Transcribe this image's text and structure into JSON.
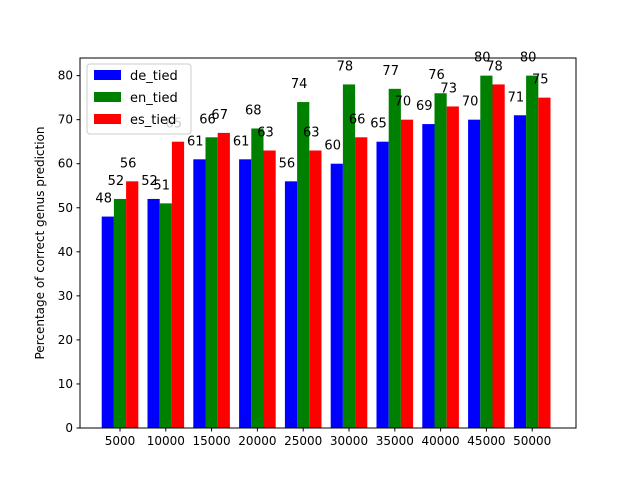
{
  "chart_data": {
    "type": "bar",
    "title": "",
    "xlabel": "",
    "ylabel": "Percentage of correct genus prediction",
    "categories": [
      "5000",
      "10000",
      "15000",
      "20000",
      "25000",
      "30000",
      "35000",
      "40000",
      "45000",
      "50000"
    ],
    "ylim": [
      0,
      84
    ],
    "yticks": [
      0,
      10,
      20,
      30,
      40,
      50,
      60,
      70,
      80
    ],
    "grid": false,
    "legend_position": "top-left",
    "series": [
      {
        "name": "de_tied",
        "color": "#0000ff",
        "values": [
          48,
          52,
          61,
          61,
          56,
          60,
          65,
          69,
          70,
          71
        ]
      },
      {
        "name": "en_tied",
        "color": "#008000",
        "values": [
          52,
          51,
          66,
          68,
          74,
          78,
          77,
          76,
          80,
          80
        ]
      },
      {
        "name": "es_tied",
        "color": "#ff0000",
        "values": [
          56,
          65,
          67,
          63,
          63,
          66,
          70,
          73,
          78,
          75
        ]
      }
    ]
  }
}
